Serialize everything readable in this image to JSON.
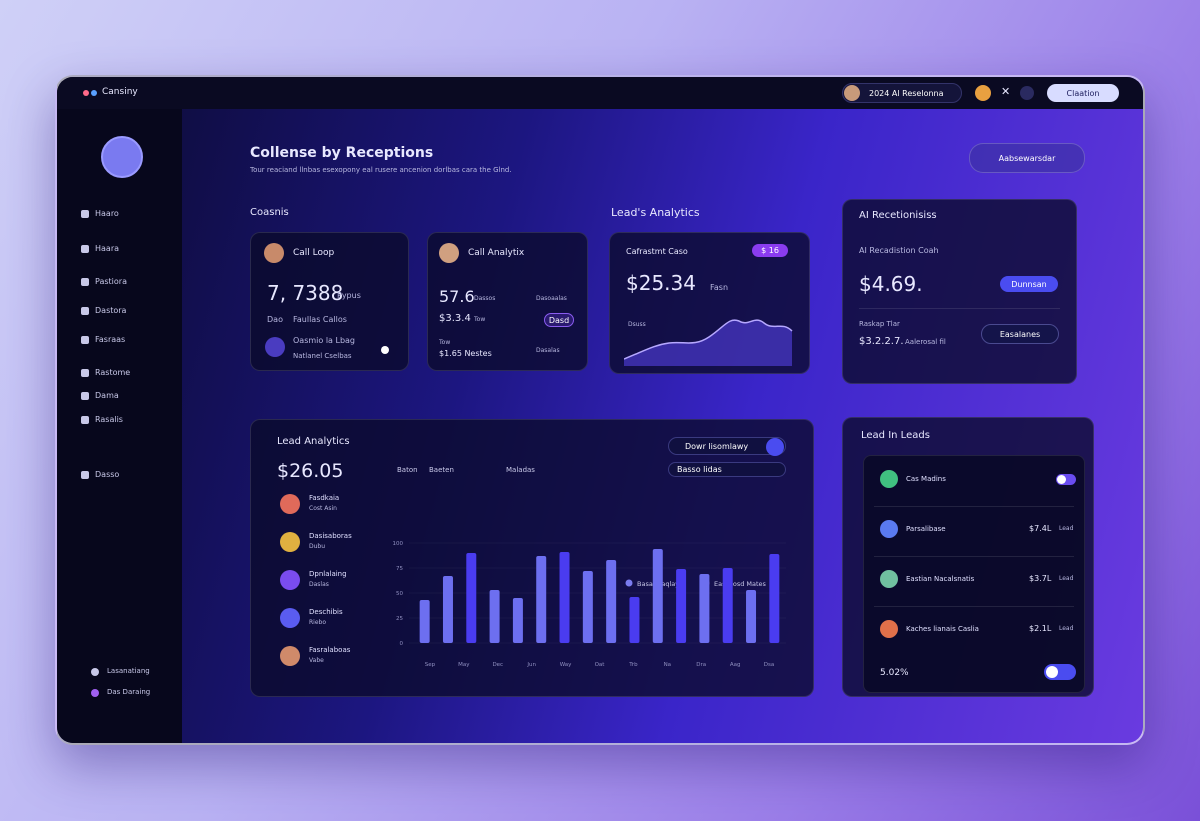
{
  "topbar": {
    "brand": "Cansiny",
    "search": "2024 Al Reselonna",
    "button": "Claation"
  },
  "sidebar": {
    "nav": [
      "Haaro",
      "Haara",
      "Pastiora",
      "Dastora",
      "Fasraas",
      "Rastome",
      "Dama",
      "Rasalis",
      "Dasso"
    ],
    "footer": [
      "Lasanatiang",
      "Das Daraing"
    ]
  },
  "header": {
    "title": "Collense by Receptions",
    "subtitle": "Tour reaciand llnbas esexopony eal rusere ancenion dorlbas cara the Glnd.",
    "button": "Aabsewarsdar"
  },
  "sections": {
    "contacts": "Coasnis",
    "leads": "Lead's Analytics"
  },
  "card_call": {
    "title": "Call Loop",
    "value": "7, 7388",
    "unit": "Pypus",
    "meta": "Dao",
    "meta2": "Faullas Callos",
    "row": "Oasmio la Lbag",
    "row_sub": "Natlanel Cselbas"
  },
  "card_analytix": {
    "title": "Call Analytix",
    "value": "57.6",
    "unit": "Dassos",
    "side": "Dasoaalas",
    "value2": "$3.3.4",
    "unit2": "Tow",
    "badge": "Dasd",
    "meta": "Tow",
    "meta2": "$1.65 Nestes",
    "side2": "Dasalas"
  },
  "card_leads": {
    "title": "Cafrastmt Caso",
    "badge": "$ 16",
    "value": "$25.34",
    "unit": "Fasn",
    "label": "Dsuss"
  },
  "card_ai": {
    "section": "AI Recetionisiss",
    "title": "AI Recadistion Coah",
    "value": "$4.69.",
    "button": "Dunnsan",
    "label": "Raskap Tlar",
    "value2": "$3.2.2.7.",
    "label2": "Aalerosal fil",
    "button2": "Easalanes"
  },
  "lead_chart": {
    "type": "bar",
    "title": "Lead Analytics",
    "total": "$26.05",
    "tabs": [
      "Baton",
      "Baeten",
      "Maladas"
    ],
    "filters": [
      "Dowr lisomlawy",
      "Basso lidas"
    ],
    "legend": [
      {
        "name": "Basaslsaqlay",
        "color": "#7b7cf0"
      },
      {
        "name": "Eassaosd Mates",
        "color": "#c05cf0"
      }
    ],
    "people": [
      {
        "name": "Fasdkaia",
        "sub": "Cost Asin"
      },
      {
        "name": "Dasisaboras",
        "sub": "Dubu"
      },
      {
        "name": "Dpnlalaing",
        "sub": "Daslas"
      },
      {
        "name": "Deschibis",
        "sub": "Riebo"
      },
      {
        "name": "Fasralaboas",
        "sub": "Vabe"
      }
    ],
    "values": [
      43,
      67,
      90,
      53,
      45,
      87,
      91,
      72,
      83,
      46,
      94,
      74,
      69,
      75,
      53,
      89
    ],
    "colors": [
      "#6d6ff0",
      "#6d6ff0",
      "#4a3cf0",
      "#6d6ff0",
      "#6d6ff0",
      "#6d6ff0",
      "#4a3cf0",
      "#6d6ff0",
      "#6d6ff0",
      "#4a3cf0",
      "#6d6ff0",
      "#4a3cf0",
      "#6d6ff0",
      "#4a3cf0",
      "#6d6ff0",
      "#4a3cf0"
    ],
    "xlabels": [
      "Sep",
      "May",
      "Dec",
      "Jun",
      "Way",
      "Oat",
      "Trb",
      "Na",
      "Dra",
      "Aag",
      "Dsa"
    ],
    "ylim": [
      0,
      100
    ],
    "yticks": [
      100,
      75,
      50,
      25,
      0
    ]
  },
  "lead_list": {
    "title": "Lead In Leads",
    "rows": [
      {
        "name": "Cas Madins"
      },
      {
        "name": "Parsalibase",
        "value": "$7.4L",
        "tag": "Lead"
      },
      {
        "name": "Eastian Nacalsnatis",
        "value": "$3.7L",
        "tag": "Lead"
      },
      {
        "name": "Kaches lianais Caslia",
        "value": "$2.1L",
        "tag": "Lead"
      }
    ],
    "footer": "5.02%"
  }
}
